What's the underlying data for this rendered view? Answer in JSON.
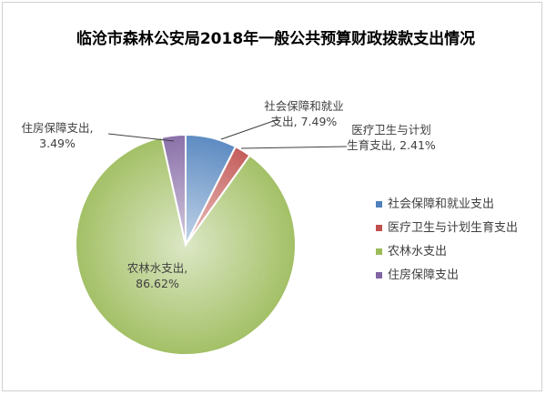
{
  "chart_data": {
    "type": "pie",
    "title": "临沧市森林公安局2018年一般公共预算财政拨款支出情况",
    "legend_position": "right",
    "series": [
      {
        "name": "社会保障和就业支出",
        "value": 7.49,
        "data_label_name": "社会保障和就业",
        "data_label_name_line2": "支出,",
        "data_label_value": "7.49%",
        "color": "#4f81bd"
      },
      {
        "name": "医疗卫生与计划生育支出",
        "value": 2.41,
        "data_label_name": "医疗卫生与计划",
        "data_label_name_line2": "生育支出,",
        "data_label_value": "2.41%",
        "color": "#c0504d"
      },
      {
        "name": "农林水支出",
        "value": 86.62,
        "data_label_name": "农林水支出,",
        "data_label_name_line2": "",
        "data_label_value": "86.62%",
        "color": "#9bbb59"
      },
      {
        "name": "住房保障支出",
        "value": 3.49,
        "data_label_name": "住房保障支出,",
        "data_label_name_line2": "",
        "data_label_value": "3.49%",
        "color": "#8064a2"
      }
    ]
  }
}
